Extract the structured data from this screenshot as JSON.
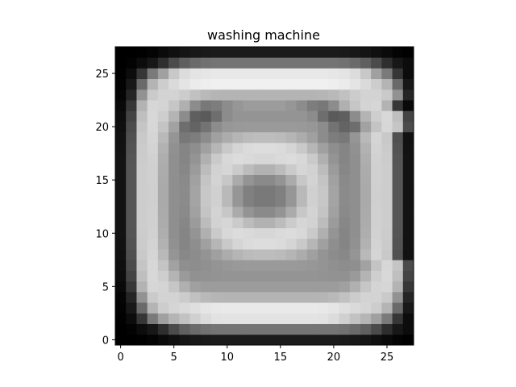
{
  "chart_data": {
    "type": "heatmap",
    "title": "washing machine",
    "xlabel": "",
    "ylabel": "",
    "colormap": "gray",
    "value_range": [
      0,
      255
    ],
    "grid": false,
    "xlim": [
      -0.5,
      27.5
    ],
    "ylim": [
      27.5,
      -0.5
    ],
    "x_ticks": [
      0,
      5,
      10,
      15,
      20,
      25
    ],
    "y_ticks": [
      0,
      5,
      10,
      15,
      20,
      25
    ],
    "x_tick_labels": [
      "0",
      "5",
      "10",
      "15",
      "20",
      "25"
    ],
    "y_tick_labels": [
      "0",
      "5",
      "10",
      "15",
      "20",
      "25"
    ],
    "grid_size": [
      28,
      28
    ],
    "values": [
      [
        0,
        0,
        1,
        4,
        10,
        16,
        21,
        24,
        26,
        27,
        27,
        27,
        27,
        27,
        27,
        27,
        27,
        27,
        27,
        27,
        27,
        26,
        24,
        21,
        16,
        10,
        4,
        1
      ],
      [
        0,
        3,
        12,
        23,
        46,
        75,
        95,
        106,
        113,
        116,
        116,
        116,
        116,
        116,
        116,
        116,
        116,
        116,
        116,
        116,
        116,
        113,
        106,
        95,
        75,
        46,
        23,
        12
      ],
      [
        1,
        12,
        54,
        122,
        160,
        181,
        194,
        208,
        220,
        226,
        227,
        227,
        227,
        227,
        227,
        227,
        227,
        227,
        227,
        226,
        220,
        208,
        194,
        181,
        160,
        122,
        54,
        12
      ],
      [
        3,
        24,
        106,
        180,
        205,
        213,
        218,
        223,
        229,
        232,
        233,
        233,
        233,
        233,
        233,
        233,
        233,
        233,
        233,
        232,
        229,
        223,
        218,
        213,
        205,
        180,
        106,
        24
      ],
      [
        5,
        37,
        146,
        202,
        211,
        211,
        204,
        193,
        185,
        181,
        180,
        180,
        180,
        180,
        180,
        180,
        180,
        180,
        180,
        181,
        185,
        193,
        204,
        211,
        211,
        202,
        146,
        37
      ],
      [
        9,
        55,
        179,
        214,
        212,
        198,
        176,
        160,
        156,
        156,
        156,
        156,
        156,
        156,
        156,
        156,
        156,
        156,
        156,
        156,
        156,
        160,
        176,
        198,
        212,
        214,
        179,
        55
      ],
      [
        13,
        68,
        191,
        216,
        206,
        180,
        154,
        145,
        146,
        147,
        148,
        148,
        148,
        148,
        148,
        148,
        148,
        148,
        148,
        147,
        146,
        145,
        154,
        180,
        206,
        216,
        191,
        68
      ],
      [
        15,
        75,
        197,
        215,
        196,
        162,
        143,
        141,
        144,
        148,
        151,
        153,
        154,
        154,
        154,
        154,
        154,
        153,
        151,
        148,
        144,
        141,
        143,
        162,
        196,
        215,
        197,
        75
      ],
      [
        17,
        80,
        201,
        213,
        185,
        149,
        136,
        140,
        148,
        160,
        172,
        181,
        187,
        189,
        189,
        187,
        181,
        172,
        160,
        148,
        140,
        136,
        149,
        185,
        213,
        201,
        80,
        17
      ],
      [
        18,
        83,
        203,
        211,
        178,
        145,
        133,
        142,
        160,
        182,
        201,
        213,
        219,
        221,
        221,
        219,
        213,
        201,
        182,
        160,
        142,
        133,
        145,
        178,
        211,
        203,
        83,
        18
      ],
      [
        19,
        85,
        204,
        209,
        174,
        143,
        133,
        148,
        176,
        202,
        216,
        220,
        218,
        215,
        215,
        218,
        220,
        216,
        202,
        176,
        148,
        133,
        143,
        174,
        209,
        204,
        85,
        19
      ],
      [
        19,
        86,
        205,
        208,
        172,
        143,
        135,
        155,
        188,
        210,
        214,
        203,
        188,
        178,
        178,
        188,
        203,
        214,
        210,
        188,
        155,
        135,
        143,
        172,
        208,
        205,
        86,
        19
      ],
      [
        19,
        86,
        205,
        208,
        171,
        143,
        138,
        161,
        196,
        211,
        199,
        171,
        148,
        138,
        138,
        148,
        171,
        199,
        211,
        196,
        161,
        138,
        143,
        171,
        208,
        205,
        86,
        19
      ],
      [
        19,
        86,
        205,
        207,
        170,
        143,
        139,
        164,
        199,
        208,
        185,
        150,
        128,
        121,
        121,
        128,
        150,
        185,
        208,
        199,
        164,
        139,
        143,
        170,
        207,
        205,
        86,
        19
      ],
      [
        19,
        86,
        205,
        207,
        170,
        143,
        139,
        164,
        199,
        208,
        185,
        150,
        128,
        121,
        121,
        128,
        150,
        185,
        208,
        199,
        164,
        139,
        143,
        170,
        207,
        205,
        86,
        19
      ],
      [
        19,
        86,
        205,
        208,
        171,
        143,
        138,
        161,
        196,
        211,
        199,
        171,
        148,
        138,
        138,
        148,
        171,
        199,
        211,
        196,
        161,
        138,
        143,
        171,
        208,
        205,
        86,
        19
      ],
      [
        19,
        86,
        205,
        208,
        172,
        143,
        135,
        155,
        188,
        210,
        214,
        203,
        188,
        178,
        178,
        188,
        203,
        214,
        210,
        188,
        155,
        135,
        143,
        172,
        208,
        205,
        86,
        19
      ],
      [
        19,
        85,
        204,
        209,
        174,
        143,
        133,
        148,
        176,
        202,
        216,
        220,
        218,
        215,
        215,
        218,
        220,
        216,
        202,
        176,
        148,
        133,
        143,
        174,
        209,
        204,
        85,
        19
      ],
      [
        18,
        83,
        203,
        211,
        178,
        145,
        133,
        142,
        160,
        182,
        201,
        213,
        219,
        221,
        221,
        219,
        213,
        201,
        182,
        160,
        142,
        133,
        145,
        178,
        211,
        203,
        83,
        18
      ],
      [
        17,
        80,
        201,
        213,
        185,
        149,
        120,
        125,
        140,
        160,
        172,
        181,
        187,
        189,
        189,
        187,
        181,
        172,
        160,
        140,
        125,
        120,
        149,
        185,
        213,
        201,
        80,
        17
      ],
      [
        15,
        75,
        197,
        215,
        196,
        162,
        110,
        100,
        115,
        140,
        151,
        153,
        154,
        154,
        154,
        154,
        154,
        153,
        151,
        140,
        115,
        100,
        110,
        162,
        196,
        215,
        197,
        75
      ],
      [
        13,
        68,
        191,
        216,
        206,
        180,
        140,
        95,
        90,
        110,
        140,
        148,
        148,
        148,
        148,
        148,
        148,
        148,
        140,
        110,
        90,
        95,
        140,
        180,
        206,
        216,
        191,
        68
      ],
      [
        9,
        55,
        179,
        214,
        212,
        198,
        176,
        140,
        120,
        125,
        140,
        150,
        156,
        156,
        156,
        156,
        150,
        140,
        125,
        120,
        140,
        176,
        198,
        212,
        214,
        179,
        55,
        9
      ],
      [
        5,
        37,
        146,
        202,
        211,
        211,
        204,
        193,
        185,
        181,
        180,
        180,
        180,
        180,
        180,
        180,
        180,
        180,
        180,
        181,
        185,
        193,
        204,
        211,
        211,
        202,
        146,
        37
      ],
      [
        3,
        24,
        106,
        180,
        205,
        218,
        228,
        235,
        238,
        240,
        240,
        240,
        240,
        240,
        240,
        240,
        240,
        240,
        240,
        240,
        238,
        235,
        228,
        218,
        205,
        180,
        106,
        24
      ],
      [
        1,
        12,
        54,
        122,
        160,
        200,
        220,
        228,
        230,
        232,
        232,
        232,
        232,
        232,
        232,
        232,
        232,
        232,
        232,
        232,
        230,
        228,
        220,
        200,
        160,
        122,
        54,
        12
      ],
      [
        0,
        3,
        12,
        23,
        46,
        75,
        95,
        106,
        113,
        116,
        116,
        116,
        116,
        116,
        116,
        116,
        116,
        116,
        116,
        116,
        116,
        113,
        106,
        95,
        75,
        46,
        23,
        12
      ],
      [
        0,
        0,
        1,
        4,
        10,
        16,
        21,
        24,
        26,
        27,
        27,
        27,
        27,
        27,
        27,
        27,
        27,
        27,
        27,
        27,
        27,
        26,
        24,
        21,
        16,
        10,
        4,
        1
      ]
    ]
  }
}
